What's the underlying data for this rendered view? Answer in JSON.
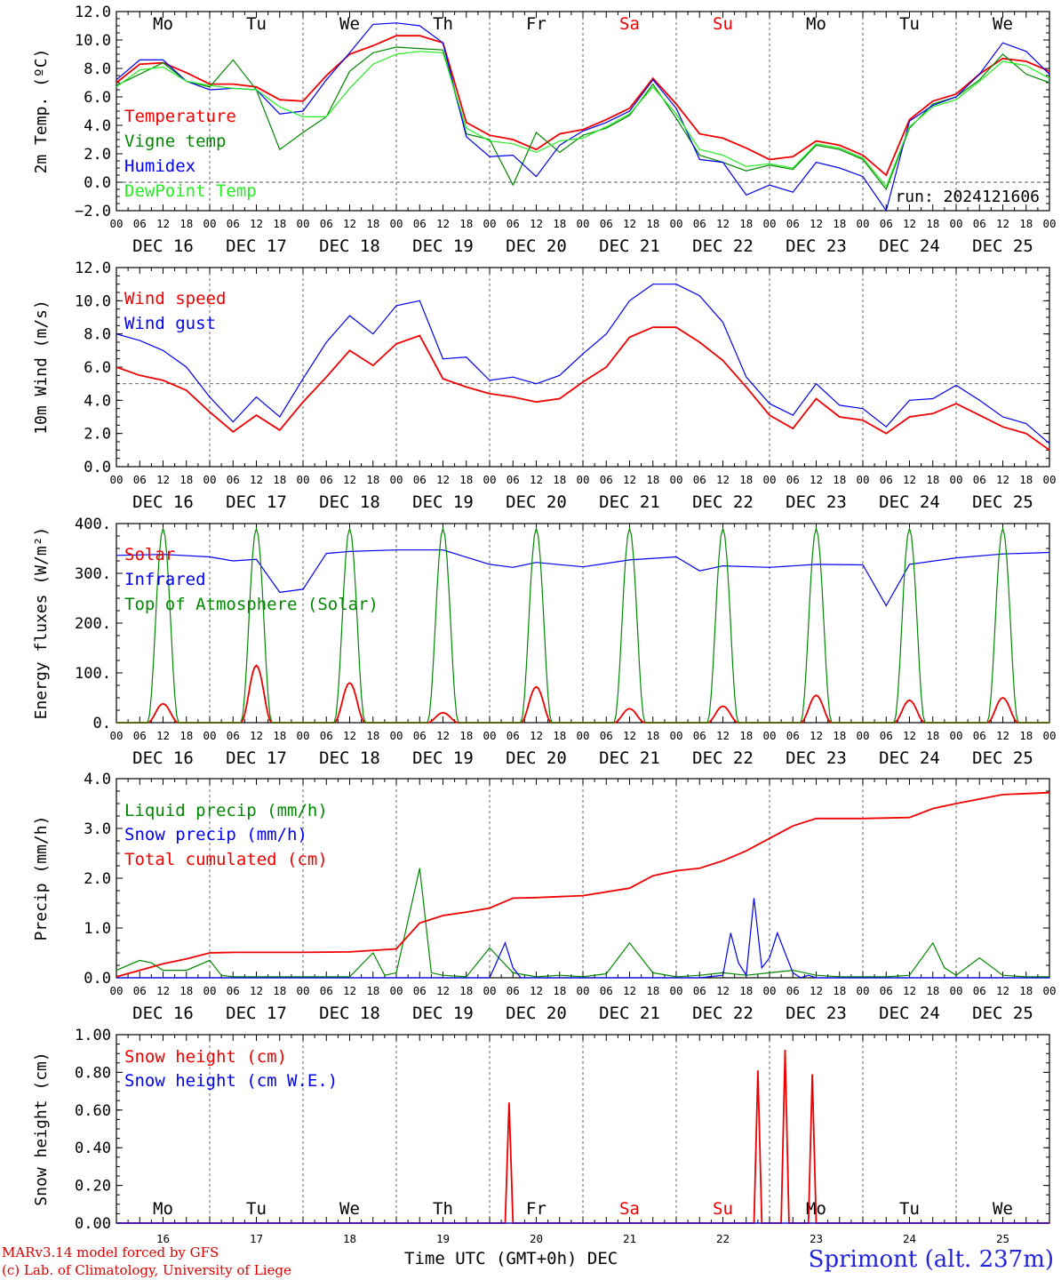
{
  "run_label": "run: 2024121606",
  "station": "Sprimont (alt. 237m)",
  "credit_model": "MARv3.14 model forced by GFS",
  "credit_lab": "(c) Lab. of Climatology, University of Liege",
  "time_axis_label": "Time UTC (GMT+0h)",
  "month_label": "DEC",
  "hour_ticks": [
    "00",
    "06",
    "12",
    "18"
  ],
  "days": [
    {
      "abbr": "Mo",
      "date": "DEC 16",
      "num": "16",
      "weekend": false
    },
    {
      "abbr": "Tu",
      "date": "DEC 17",
      "num": "17",
      "weekend": false
    },
    {
      "abbr": "We",
      "date": "DEC 18",
      "num": "18",
      "weekend": false
    },
    {
      "abbr": "Th",
      "date": "DEC 19",
      "num": "19",
      "weekend": false
    },
    {
      "abbr": "Fr",
      "date": "DEC 20",
      "num": "20",
      "weekend": false
    },
    {
      "abbr": "Sa",
      "date": "DEC 21",
      "num": "21",
      "weekend": true
    },
    {
      "abbr": "Su",
      "date": "DEC 22",
      "num": "22",
      "weekend": true
    },
    {
      "abbr": "Mo",
      "date": "DEC 23",
      "num": "23",
      "weekend": false
    },
    {
      "abbr": "Tu",
      "date": "DEC 24",
      "num": "24",
      "weekend": false
    },
    {
      "abbr": "We",
      "date": "DEC 25",
      "num": "25",
      "weekend": false
    }
  ],
  "colors": {
    "red": "#ee0000",
    "blue": "#0000ee",
    "green": "#008800",
    "lightgreen": "#22ee22",
    "grid": "#555555"
  },
  "chart_data": [
    {
      "id": "temp",
      "type": "line",
      "ylabel": "2m Temp. (ºC)",
      "ylim": [
        -2,
        12
      ],
      "yticks": [
        "12.0",
        "10.0",
        "8.0",
        "6.0",
        "4.0",
        "2.0",
        "0.0",
        "−2.0"
      ],
      "yticks_values": [
        12,
        10,
        8,
        6,
        4,
        2,
        0,
        -2
      ],
      "ref_line": 0,
      "show_day_abbr": true,
      "x_hours": [
        0,
        240
      ],
      "series": [
        {
          "name": "Temperature",
          "color": "red",
          "x": [
            0,
            6,
            12,
            18,
            24,
            30,
            36,
            42,
            48,
            54,
            60,
            66,
            72,
            78,
            84,
            90,
            96,
            102,
            108,
            114,
            120,
            126,
            132,
            138,
            144,
            150,
            156,
            162,
            168,
            174,
            180,
            186,
            192,
            198,
            204,
            210,
            216,
            222,
            228,
            234,
            240
          ],
          "y": [
            7.0,
            8.3,
            8.4,
            7.7,
            6.9,
            6.9,
            6.7,
            5.8,
            5.7,
            7.5,
            9.0,
            9.6,
            10.3,
            10.3,
            9.8,
            4.2,
            3.3,
            3.0,
            2.3,
            3.4,
            3.7,
            4.4,
            5.2,
            7.3,
            5.5,
            3.4,
            3.1,
            2.4,
            1.6,
            1.8,
            2.9,
            2.6,
            1.9,
            0.5,
            4.4,
            5.7,
            6.2,
            7.6,
            8.7,
            8.5,
            7.8
          ]
        },
        {
          "name": "Vigne temp",
          "color": "green",
          "x": [
            0,
            6,
            12,
            18,
            24,
            30,
            36,
            42,
            48,
            54,
            60,
            66,
            72,
            78,
            84,
            90,
            96,
            102,
            108,
            114,
            120,
            126,
            132,
            138,
            144,
            150,
            156,
            162,
            168,
            174,
            180,
            186,
            192,
            198,
            204,
            210,
            216,
            222,
            228,
            234,
            240
          ],
          "y": [
            6.8,
            7.6,
            8.4,
            7.1,
            6.7,
            8.6,
            6.5,
            2.3,
            3.5,
            4.6,
            7.8,
            9.1,
            9.5,
            9.4,
            9.3,
            3.4,
            3.0,
            -0.2,
            3.5,
            2.1,
            3.3,
            3.8,
            4.7,
            6.9,
            4.5,
            1.9,
            1.4,
            0.8,
            1.2,
            0.9,
            2.6,
            2.3,
            1.6,
            -0.5,
            3.8,
            5.5,
            6.0,
            7.2,
            9.0,
            7.6,
            7.0
          ]
        },
        {
          "name": "Humidex",
          "color": "blue",
          "x": [
            0,
            6,
            12,
            18,
            24,
            30,
            36,
            42,
            48,
            54,
            60,
            66,
            72,
            78,
            84,
            90,
            96,
            102,
            108,
            114,
            120,
            126,
            132,
            138,
            144,
            150,
            156,
            162,
            168,
            174,
            180,
            186,
            192,
            198,
            204,
            210,
            216,
            222,
            228,
            234,
            240
          ],
          "y": [
            7.2,
            8.6,
            8.6,
            7.1,
            6.5,
            6.6,
            6.5,
            4.8,
            5.0,
            7.2,
            9.1,
            11.1,
            11.2,
            11.0,
            9.8,
            3.2,
            1.8,
            1.9,
            0.4,
            2.6,
            3.6,
            4.2,
            5.0,
            7.2,
            5.2,
            1.6,
            1.4,
            -0.9,
            -0.2,
            -0.7,
            1.4,
            1.0,
            0.4,
            -2.0,
            4.3,
            5.4,
            6.0,
            7.6,
            9.8,
            9.2,
            7.6
          ]
        },
        {
          "name": "DewPoint Temp",
          "color": "lightgreen",
          "x": [
            0,
            6,
            12,
            18,
            24,
            30,
            36,
            42,
            48,
            54,
            60,
            66,
            72,
            78,
            84,
            90,
            96,
            102,
            108,
            114,
            120,
            126,
            132,
            138,
            144,
            150,
            156,
            162,
            168,
            174,
            180,
            186,
            192,
            198,
            204,
            210,
            216,
            222,
            228,
            234,
            240
          ],
          "y": [
            6.7,
            7.9,
            8.1,
            7.1,
            6.8,
            6.6,
            6.5,
            5.3,
            4.6,
            4.6,
            6.6,
            8.3,
            9.0,
            9.2,
            9.1,
            3.8,
            2.9,
            2.7,
            2.1,
            2.9,
            3.1,
            3.9,
            4.8,
            6.7,
            4.8,
            2.3,
            1.9,
            1.1,
            1.3,
            1.0,
            2.7,
            2.4,
            1.7,
            -0.3,
            3.9,
            5.3,
            5.8,
            7.1,
            8.5,
            8.2,
            7.3
          ]
        }
      ]
    },
    {
      "id": "wind",
      "type": "line",
      "ylabel": "10m Wind (m/s)",
      "ylim": [
        0,
        12
      ],
      "yticks": [
        "12.0",
        "10.0",
        "8.0",
        "6.0",
        "4.0",
        "2.0",
        "0.0"
      ],
      "yticks_values": [
        12,
        10,
        8,
        6,
        4,
        2,
        0
      ],
      "ref_line": 5,
      "x_hours": [
        0,
        240
      ],
      "series": [
        {
          "name": "Wind speed",
          "color": "red",
          "x": [
            0,
            6,
            12,
            18,
            24,
            30,
            36,
            42,
            48,
            54,
            60,
            66,
            72,
            78,
            84,
            90,
            96,
            102,
            108,
            114,
            120,
            126,
            132,
            138,
            144,
            150,
            156,
            162,
            168,
            174,
            180,
            186,
            192,
            198,
            204,
            210,
            216,
            222,
            228,
            234,
            240
          ],
          "y": [
            6.0,
            5.5,
            5.2,
            4.6,
            3.3,
            2.1,
            3.1,
            2.2,
            3.9,
            5.4,
            7.0,
            6.1,
            7.4,
            7.9,
            5.3,
            4.8,
            4.4,
            4.2,
            3.9,
            4.1,
            5.1,
            6.0,
            7.8,
            8.4,
            8.4,
            7.5,
            6.4,
            4.8,
            3.1,
            2.3,
            4.1,
            3.0,
            2.8,
            2.0,
            3.0,
            3.2,
            3.8,
            3.1,
            2.4,
            2.0,
            1.0
          ]
        },
        {
          "name": "Wind gust",
          "color": "blue",
          "x": [
            0,
            6,
            12,
            18,
            24,
            30,
            36,
            42,
            48,
            54,
            60,
            66,
            72,
            78,
            84,
            90,
            96,
            102,
            108,
            114,
            120,
            126,
            132,
            138,
            144,
            150,
            156,
            162,
            168,
            174,
            180,
            186,
            192,
            198,
            204,
            210,
            216,
            222,
            228,
            234,
            240
          ],
          "y": [
            8.0,
            7.6,
            7.0,
            6.0,
            4.2,
            2.7,
            4.2,
            3.0,
            5.3,
            7.5,
            9.1,
            8.0,
            9.7,
            10.0,
            6.5,
            6.6,
            5.2,
            5.4,
            5.0,
            5.5,
            6.8,
            8.0,
            10.0,
            11.0,
            11.0,
            10.3,
            8.7,
            5.4,
            3.8,
            3.1,
            5.0,
            3.7,
            3.5,
            2.4,
            4.0,
            4.1,
            4.9,
            4.0,
            3.0,
            2.6,
            1.4
          ]
        }
      ]
    },
    {
      "id": "energy",
      "type": "line",
      "ylabel": "Energy fluxes (W/m²)",
      "ylim": [
        0,
        400
      ],
      "yticks": [
        "400.",
        "300.",
        "200.",
        "100.",
        "0."
      ],
      "yticks_values": [
        400,
        300,
        200,
        100,
        0
      ],
      "x_hours": [
        0,
        240
      ],
      "series": [
        {
          "name": "Solar",
          "color": "red",
          "daily_peak_hour": 12,
          "half_width_hours": 4,
          "daily_peaks": [
            38,
            115,
            80,
            20,
            72,
            28,
            33,
            55,
            45,
            50
          ]
        },
        {
          "name": "Infrared",
          "color": "blue",
          "x": [
            0,
            12,
            24,
            30,
            36,
            42,
            48,
            54,
            60,
            72,
            84,
            96,
            102,
            108,
            120,
            132,
            144,
            150,
            156,
            168,
            180,
            192,
            198,
            204,
            216,
            228,
            240
          ],
          "y": [
            336,
            338,
            333,
            325,
            328,
            262,
            268,
            340,
            344,
            347,
            347,
            318,
            312,
            322,
            313,
            327,
            333,
            305,
            315,
            312,
            318,
            317,
            235,
            318,
            331,
            339,
            342
          ]
        },
        {
          "name": "Top of Atmosphere (Solar)",
          "color": "green",
          "daily_peak_hour": 12,
          "half_width_hours": 4,
          "daily_peaks": [
            390,
            390,
            390,
            390,
            390,
            390,
            390,
            390,
            390,
            390
          ]
        }
      ]
    },
    {
      "id": "precip",
      "type": "line",
      "ylabel": "Precip (mm/h)",
      "ylim": [
        0,
        4
      ],
      "yticks": [
        "4.0",
        "3.0",
        "2.0",
        "1.0",
        "0.0"
      ],
      "yticks_values": [
        4,
        3,
        2,
        1,
        0
      ],
      "x_hours": [
        0,
        240
      ],
      "series": [
        {
          "name": "Liquid precip (mm/h)",
          "color": "green",
          "x": [
            0,
            6,
            9,
            12,
            18,
            24,
            27,
            30,
            48,
            60,
            66,
            69,
            72,
            78,
            81,
            84,
            90,
            96,
            102,
            108,
            114,
            120,
            126,
            132,
            138,
            144,
            150,
            156,
            162,
            168,
            174,
            180,
            186,
            192,
            198,
            204,
            210,
            213,
            216,
            222,
            228,
            234,
            240
          ],
          "y": [
            0.15,
            0.35,
            0.3,
            0.15,
            0.15,
            0.35,
            0.05,
            0.02,
            0.02,
            0.02,
            0.5,
            0.05,
            0.1,
            2.2,
            0.1,
            0.05,
            0.02,
            0.6,
            0.1,
            0.02,
            0.05,
            0.02,
            0.08,
            0.7,
            0.1,
            0.02,
            0.05,
            0.1,
            0.05,
            0.1,
            0.15,
            0.05,
            0.02,
            0.02,
            0.02,
            0.05,
            0.7,
            0.2,
            0.05,
            0.4,
            0.05,
            0.02,
            0.02
          ]
        },
        {
          "name": "Snow precip (mm/h)",
          "color": "blue",
          "x": [
            0,
            96,
            100,
            102,
            104,
            150,
            156,
            158,
            160,
            162,
            164,
            166,
            168,
            170,
            172,
            174,
            176,
            178,
            180,
            240
          ],
          "y": [
            0,
            0,
            0.7,
            0.2,
            0,
            0,
            0.05,
            0.9,
            0.3,
            0.05,
            1.6,
            0.2,
            0.4,
            0.9,
            0.5,
            0.1,
            0,
            0.05,
            0,
            0
          ]
        },
        {
          "name": "Total cumulated (cm)",
          "color": "red",
          "x": [
            0,
            6,
            12,
            18,
            24,
            30,
            48,
            60,
            72,
            78,
            84,
            90,
            96,
            102,
            108,
            120,
            132,
            138,
            144,
            150,
            156,
            162,
            168,
            174,
            180,
            192,
            204,
            210,
            216,
            228,
            240
          ],
          "y": [
            0.02,
            0.15,
            0.28,
            0.38,
            0.5,
            0.51,
            0.51,
            0.52,
            0.58,
            1.1,
            1.25,
            1.32,
            1.4,
            1.6,
            1.61,
            1.65,
            1.8,
            2.05,
            2.15,
            2.2,
            2.35,
            2.55,
            2.8,
            3.05,
            3.2,
            3.2,
            3.22,
            3.4,
            3.5,
            3.68,
            3.72
          ]
        }
      ]
    },
    {
      "id": "snow",
      "type": "line",
      "ylabel": "Snow height (cm)",
      "ylim": [
        0,
        1
      ],
      "yticks": [
        "1.00",
        "0.80",
        "0.60",
        "0.40",
        "0.20",
        "0.00"
      ],
      "yticks_values": [
        1,
        0.8,
        0.6,
        0.4,
        0.2,
        0
      ],
      "show_day_abbr_bottom": true,
      "x_hours": [
        0,
        240
      ],
      "series": [
        {
          "name": "Snow height (cm)",
          "color": "red",
          "x": [
            0,
            100,
            101,
            102,
            164,
            165,
            166,
            171,
            172,
            173,
            178,
            179,
            180,
            240
          ],
          "y": [
            0,
            0,
            0.64,
            0,
            0,
            0.81,
            0,
            0,
            0.92,
            0,
            0,
            0.79,
            0,
            0
          ]
        },
        {
          "name": "Snow height (cm W.E.)",
          "color": "blue",
          "x": [
            0,
            240
          ],
          "y": [
            0,
            0
          ]
        }
      ]
    }
  ]
}
